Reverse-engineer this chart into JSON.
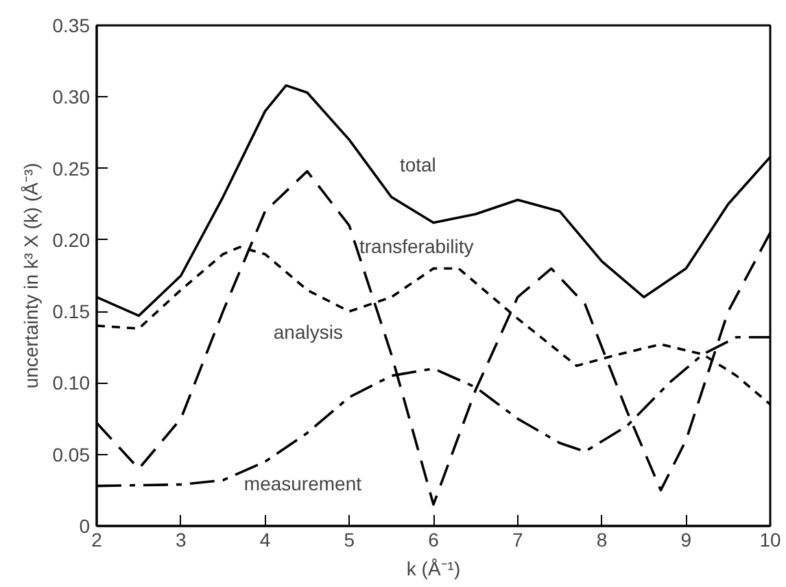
{
  "chart_data": {
    "type": "line",
    "xlabel": "k (Å⁻¹)",
    "ylabel": "uncertainty in k³ X (k) (Å⁻³)",
    "xlim": [
      2,
      10
    ],
    "ylim": [
      0,
      0.35
    ],
    "xticks": [
      2,
      3,
      4,
      5,
      6,
      7,
      8,
      9,
      10
    ],
    "yticks": [
      0,
      0.05,
      {
        "value": 0.1,
        "label": "0.10"
      },
      0.15,
      {
        "value": 0.2,
        "label": "0.20"
      },
      0.25,
      {
        "value": 0.3,
        "label": "0.30"
      },
      0.35
    ],
    "grid": false,
    "marker": "none",
    "series": [
      {
        "name": "total",
        "color": "#000000",
        "line_style": "solid",
        "x": [
          2,
          2.5,
          3,
          3.5,
          4,
          4.25,
          4.5,
          5,
          5.5,
          6,
          6.5,
          7,
          7.5,
          8,
          8.5,
          9,
          9.5,
          10
        ],
        "values": [
          0.16,
          0.147,
          0.175,
          0.23,
          0.29,
          0.308,
          0.303,
          0.27,
          0.23,
          0.212,
          0.218,
          0.228,
          0.22,
          0.185,
          0.16,
          0.18,
          0.225,
          0.258
        ]
      },
      {
        "name": "transferability",
        "color": "#000000",
        "line_style": "dashed",
        "x": [
          2,
          2.5,
          3,
          3.5,
          4,
          4.5,
          5,
          5.5,
          6,
          6.5,
          7,
          7.4,
          7.8,
          8.3,
          8.7,
          9,
          9.5,
          10
        ],
        "values": [
          0.072,
          0.04,
          0.075,
          0.15,
          0.22,
          0.248,
          0.21,
          0.12,
          0.015,
          0.095,
          0.16,
          0.18,
          0.155,
          0.08,
          0.025,
          0.06,
          0.15,
          0.205
        ]
      },
      {
        "name": "analysis",
        "color": "#000000",
        "line_style": "dotted",
        "x": [
          2,
          2.5,
          3,
          3.5,
          3.7,
          4,
          4.5,
          5,
          5.5,
          6,
          6.3,
          7,
          7.7,
          8.2,
          8.7,
          9.2,
          9.6,
          10
        ],
        "values": [
          0.14,
          0.138,
          0.165,
          0.19,
          0.195,
          0.19,
          0.165,
          0.15,
          0.16,
          0.18,
          0.18,
          0.145,
          0.112,
          0.12,
          0.127,
          0.12,
          0.105,
          0.085
        ]
      },
      {
        "name": "measurement",
        "color": "#000000",
        "line_style": "dashdot",
        "x": [
          2,
          3,
          3.5,
          4,
          4.5,
          5,
          5.5,
          6,
          6.5,
          7,
          7.5,
          7.8,
          8.3,
          8.8,
          9.2,
          9.6,
          10
        ],
        "values": [
          0.028,
          0.029,
          0.032,
          0.045,
          0.065,
          0.09,
          0.105,
          0.11,
          0.097,
          0.075,
          0.058,
          0.052,
          0.07,
          0.1,
          0.12,
          0.132,
          0.132
        ]
      }
    ]
  }
}
